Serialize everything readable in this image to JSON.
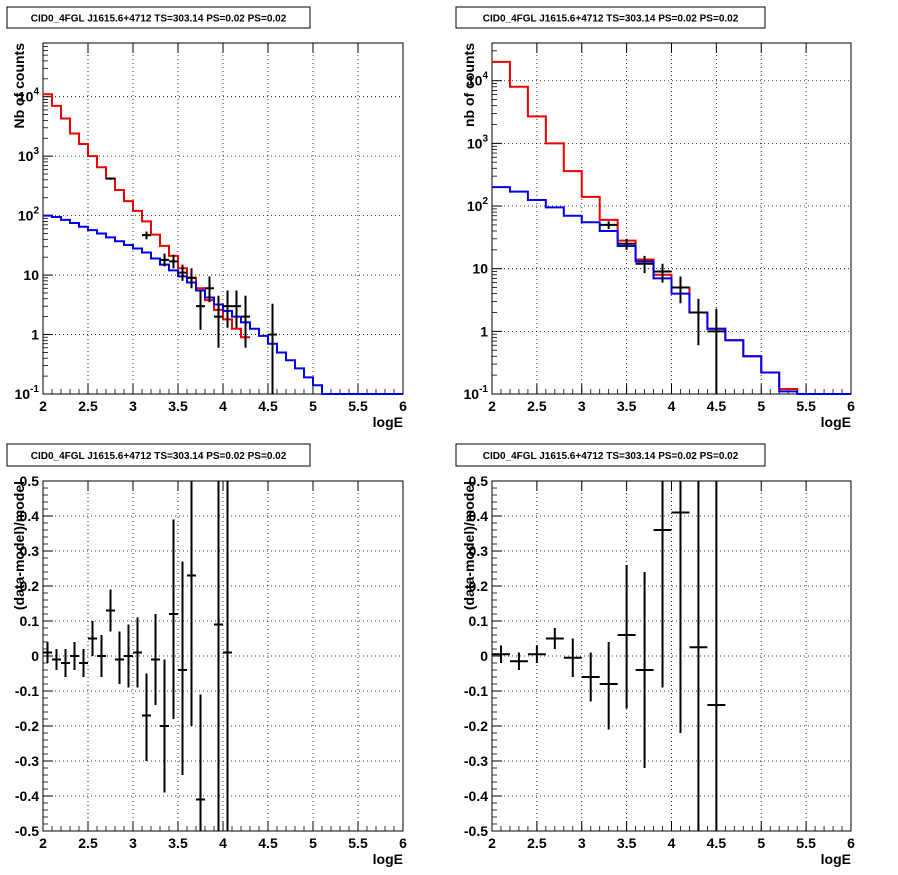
{
  "chart_data": [
    {
      "type": "line",
      "title": "CID0_4FGL J1615.6+4712 TS=303.14 PS=0.02 PS=0.02",
      "xlabel": "logE",
      "ylabel": "Nb of counts",
      "xlim": [
        2,
        6
      ],
      "ylim": [
        0.1,
        80000
      ],
      "log_y": true,
      "grid": true,
      "x_ticks": [
        "2",
        "2.5",
        "3",
        "3.5",
        "4",
        "4.5",
        "5",
        "5.5",
        "6"
      ],
      "y_ticks": [
        "10^-1",
        "1",
        "10",
        "10^2",
        "10^3",
        "10^4"
      ],
      "series": [
        {
          "color": "#ee0000",
          "style": "step",
          "bin_edges": [
            2.0,
            2.1,
            2.2,
            2.3,
            2.4,
            2.5,
            2.6,
            2.7,
            2.8,
            2.9,
            3.0,
            3.1,
            3.2,
            3.3,
            3.4,
            3.5,
            3.6,
            3.7,
            3.8,
            3.9,
            4.0,
            4.1,
            4.2,
            4.3
          ],
          "values": [
            11000,
            7000,
            4300,
            2400,
            1600,
            1000,
            650,
            420,
            270,
            175,
            120,
            80,
            48,
            31,
            21,
            13,
            9.0,
            6.0,
            3.8,
            2.6,
            1.8,
            1.25,
            0.9
          ]
        },
        {
          "color": "#0000ee",
          "style": "step",
          "bin_edges": [
            2.0,
            2.1,
            2.2,
            2.3,
            2.4,
            2.5,
            2.6,
            2.7,
            2.8,
            2.9,
            3.0,
            3.1,
            3.2,
            3.3,
            3.4,
            3.5,
            3.6,
            3.7,
            3.8,
            3.9,
            4.0,
            4.1,
            4.2,
            4.3,
            4.4,
            4.5,
            4.6,
            4.7,
            4.8,
            4.9,
            5.0,
            5.1,
            6.0
          ],
          "values": [
            100,
            95,
            85,
            75,
            65,
            57,
            50,
            43,
            37,
            32,
            28,
            24,
            19,
            15,
            12,
            9.5,
            7.5,
            5.5,
            4.2,
            3.2,
            2.5,
            2.0,
            1.6,
            1.25,
            0.95,
            0.7,
            0.5,
            0.37,
            0.27,
            0.19,
            0.14,
            0.1
          ]
        },
        {
          "color": "#000000",
          "style": "errorbars",
          "x": [
            2.75,
            3.15,
            3.35,
            3.45,
            3.55,
            3.65,
            3.75,
            3.85,
            3.95,
            4.05,
            4.15,
            4.25,
            4.55
          ],
          "values": [
            420,
            47,
            18,
            17,
            11,
            9,
            3,
            6,
            2,
            3,
            3,
            2,
            1
          ],
          "err_low": [
            400,
            40,
            14,
            13,
            8,
            6,
            1.2,
            3.5,
            0.6,
            1.3,
            1.3,
            0.6,
            0.05
          ],
          "err_high": [
            440,
            54,
            23,
            22,
            15,
            13,
            5.5,
            9.5,
            4.5,
            5.5,
            5.5,
            4.5,
            3.3
          ],
          "xerr": 0.05
        }
      ]
    },
    {
      "type": "line",
      "title": "CID0_4FGL J1615.6+4712 TS=303.14 PS=0.02 PS=0.02",
      "xlabel": "logE",
      "ylabel": "nb of counts",
      "xlim": [
        2,
        6
      ],
      "ylim": [
        0.1,
        40000
      ],
      "log_y": true,
      "grid": true,
      "x_ticks": [
        "2",
        "2.5",
        "3",
        "3.5",
        "4",
        "4.5",
        "5",
        "5.5",
        "6"
      ],
      "y_ticks": [
        "10^-1",
        "1",
        "10",
        "10^2",
        "10^3",
        "10^4"
      ],
      "series": [
        {
          "color": "#ee0000",
          "style": "step",
          "bin_edges": [
            2.0,
            2.2,
            2.4,
            2.6,
            2.8,
            3.0,
            3.2,
            3.4,
            3.6,
            3.8,
            4.0,
            4.2,
            4.4,
            4.6,
            4.8,
            5.0,
            5.2,
            5.4,
            6.0
          ],
          "values": [
            20000,
            8000,
            2700,
            1000,
            360,
            140,
            60,
            28,
            14,
            8,
            5,
            2.0,
            1.1,
            0.72,
            0.4,
            0.22,
            0.12,
            0.1
          ]
        },
        {
          "color": "#0000ee",
          "style": "step",
          "bin_edges": [
            2.0,
            2.2,
            2.4,
            2.6,
            2.8,
            3.0,
            3.2,
            3.4,
            3.6,
            3.8,
            4.0,
            4.2,
            4.4,
            4.6,
            4.8,
            5.0,
            5.2,
            5.4,
            6.0
          ],
          "values": [
            200,
            170,
            125,
            95,
            70,
            55,
            40,
            23,
            13,
            7,
            4,
            2.0,
            1.1,
            0.72,
            0.4,
            0.22,
            0.11,
            0.1
          ]
        },
        {
          "color": "#000000",
          "style": "errorbars",
          "x": [
            3.3,
            3.5,
            3.7,
            3.9,
            4.1,
            4.3,
            4.5
          ],
          "values": [
            50,
            25,
            12,
            9,
            5,
            2,
            1
          ],
          "err_low": [
            43,
            20,
            8.5,
            6,
            2.8,
            0.6,
            0.05
          ],
          "err_high": [
            57,
            30,
            16,
            12,
            7.5,
            3.3,
            2.3
          ],
          "xerr": 0.1
        }
      ]
    },
    {
      "type": "scatter",
      "title": "CID0_4FGL J1615.6+4712 TS=303.14 PS=0.02 PS=0.02",
      "xlabel": "logE",
      "ylabel": "(data-model)/model",
      "xlim": [
        2,
        6
      ],
      "ylim": [
        -0.5,
        0.5
      ],
      "grid": true,
      "x_ticks": [
        "2",
        "2.5",
        "3",
        "3.5",
        "4",
        "4.5",
        "5",
        "5.5",
        "6"
      ],
      "y_ticks": [
        "-0.5",
        "-0.4",
        "-0.3",
        "-0.2",
        "-0.1",
        "0",
        "0.1",
        "0.2",
        "0.3",
        "0.4",
        "0.5"
      ],
      "series": [
        {
          "color": "#000000",
          "style": "errorbars",
          "x": [
            2.05,
            2.15,
            2.25,
            2.35,
            2.45,
            2.55,
            2.65,
            2.75,
            2.85,
            2.95,
            3.05,
            3.15,
            3.25,
            3.35,
            3.45,
            3.55,
            3.65,
            3.75,
            3.95,
            4.05
          ],
          "values": [
            0.01,
            -0.01,
            -0.02,
            0.0,
            -0.02,
            0.05,
            0.0,
            0.13,
            -0.01,
            0.0,
            0.01,
            -0.17,
            -0.01,
            -0.2,
            0.12,
            -0.04,
            0.23,
            -0.41,
            0.09,
            0.01
          ],
          "err_low": [
            -0.02,
            -0.04,
            -0.06,
            -0.04,
            -0.06,
            0.0,
            -0.06,
            0.07,
            -0.08,
            -0.09,
            -0.09,
            -0.3,
            -0.14,
            -0.39,
            -0.18,
            -0.34,
            -0.2,
            -0.5,
            -0.5,
            -0.5
          ],
          "err_high": [
            0.04,
            0.02,
            0.02,
            0.04,
            0.02,
            0.1,
            0.06,
            0.19,
            0.07,
            0.09,
            0.11,
            -0.05,
            0.12,
            -0.01,
            0.39,
            0.27,
            0.5,
            -0.11,
            0.5,
            0.5
          ],
          "xerr": 0.05
        }
      ]
    },
    {
      "type": "scatter",
      "title": "CID0_4FGL J1615.6+4712 TS=303.14 PS=0.02 PS=0.02",
      "xlabel": "logE",
      "ylabel": "(data-model)/model",
      "xlim": [
        2,
        6
      ],
      "ylim": [
        -0.5,
        0.5
      ],
      "grid": true,
      "x_ticks": [
        "2",
        "2.5",
        "3",
        "3.5",
        "4",
        "4.5",
        "5",
        "5.5",
        "6"
      ],
      "y_ticks": [
        "-0.5",
        "-0.4",
        "-0.3",
        "-0.2",
        "-0.1",
        "0",
        "0.1",
        "0.2",
        "0.3",
        "0.4",
        "0.5"
      ],
      "series": [
        {
          "color": "#000000",
          "style": "errorbars",
          "x": [
            2.1,
            2.3,
            2.5,
            2.7,
            2.9,
            3.1,
            3.3,
            3.5,
            3.7,
            3.9,
            4.1,
            4.3,
            4.5
          ],
          "values": [
            0.005,
            -0.015,
            0.005,
            0.05,
            -0.005,
            -0.06,
            -0.08,
            0.06,
            -0.04,
            0.36,
            0.41,
            0.025,
            -0.14
          ],
          "err_low": [
            -0.02,
            -0.04,
            -0.02,
            0.02,
            -0.06,
            -0.13,
            -0.21,
            -0.15,
            -0.32,
            -0.09,
            -0.22,
            -0.5,
            -0.5
          ],
          "err_high": [
            0.03,
            0.01,
            0.03,
            0.08,
            0.05,
            0.01,
            0.04,
            0.26,
            0.24,
            0.5,
            0.5,
            0.5,
            0.5
          ],
          "xerr": 0.1
        }
      ]
    }
  ]
}
